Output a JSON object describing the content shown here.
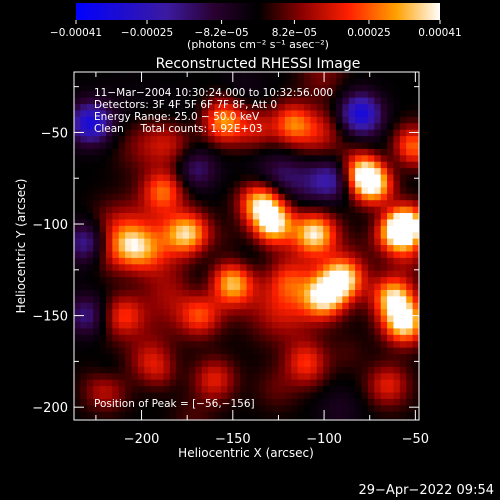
{
  "chart_data": {
    "type": "heatmap",
    "title": "Reconstructed RHESSI Image",
    "xlabel": "Heliocentric X (arcsec)",
    "ylabel": "Heliocentric Y (arcsec)",
    "xlim": [
      -237,
      -48
    ],
    "ylim": [
      -207,
      -17
    ],
    "xticks": [
      -200,
      -150,
      -100,
      -50
    ],
    "yticks": [
      -50,
      -100,
      -150,
      -200
    ],
    "xtick_labels": [
      "−200",
      "−150",
      "−100",
      "−50"
    ],
    "ytick_labels": [
      "−50",
      "−100",
      "−150",
      "−200"
    ],
    "colorbar": {
      "min": -0.00041,
      "max": 0.00041,
      "ticks": [
        -0.00041,
        -0.00025,
        -8.2e-05,
        8.2e-05,
        0.00025,
        0.00041
      ],
      "tick_labels": [
        "−0.00041",
        "−0.00025",
        "−8.2e−05",
        "8.2e−05",
        "0.00025",
        "0.00041"
      ],
      "unit_label": "(photons cm⁻² s⁻¹ asec⁻²)"
    },
    "annotations": [
      "11−Mar−2004 10:30:24.000 to 10:32:56.000",
      "Detectors: 3F 4F 5F 6F 7F 8F, Att 0",
      "Energy Range: 25.0 − 50.0 keV",
      "Clean     Total counts: 1.92E+03"
    ],
    "peak_label": "Position of Peak = [−56,−156]",
    "peak": [
      -56,
      -156
    ],
    "bright_sources": [
      {
        "x": -100,
        "y": -140,
        "v": 0.00036
      },
      {
        "x": -90,
        "y": -130,
        "v": 0.0004
      },
      {
        "x": -62,
        "y": -140,
        "v": 0.00036
      },
      {
        "x": -56,
        "y": -154,
        "v": 0.00041
      },
      {
        "x": -78,
        "y": -72,
        "v": 0.00038
      },
      {
        "x": -72,
        "y": -80,
        "v": 0.00034
      },
      {
        "x": -135,
        "y": -88,
        "v": 0.00036
      },
      {
        "x": -128,
        "y": -100,
        "v": 0.00039
      },
      {
        "x": -105,
        "y": -105,
        "v": 0.00036
      },
      {
        "x": -55,
        "y": -100,
        "v": 0.00038
      },
      {
        "x": -60,
        "y": -105,
        "v": 0.00034
      },
      {
        "x": -188,
        "y": -82,
        "v": 0.00026
      },
      {
        "x": -174,
        "y": -105,
        "v": 0.00031
      },
      {
        "x": -205,
        "y": -112,
        "v": 0.00024
      },
      {
        "x": -150,
        "y": -132,
        "v": 0.0003
      },
      {
        "x": -168,
        "y": -150,
        "v": 0.00022
      },
      {
        "x": -118,
        "y": -45,
        "v": 0.00026
      },
      {
        "x": -155,
        "y": -45,
        "v": 0.00022
      },
      {
        "x": -52,
        "y": -58,
        "v": 0.00028
      },
      {
        "x": -210,
        "y": -150,
        "v": 0.0002
      },
      {
        "x": -110,
        "y": -175,
        "v": 0.00018
      },
      {
        "x": -160,
        "y": -185,
        "v": 0.00018
      },
      {
        "x": -220,
        "y": -190,
        "v": 0.00016
      },
      {
        "x": -65,
        "y": -188,
        "v": 0.00018
      },
      {
        "x": -195,
        "y": -175,
        "v": 0.00014
      }
    ],
    "negative_sources": [
      {
        "x": -228,
        "y": -45,
        "v": -0.00032
      },
      {
        "x": -80,
        "y": -40,
        "v": -0.00034
      },
      {
        "x": -95,
        "y": -75,
        "v": -0.00026
      },
      {
        "x": -230,
        "y": -110,
        "v": -0.00022
      },
      {
        "x": -230,
        "y": -150,
        "v": -0.00018
      },
      {
        "x": -170,
        "y": -70,
        "v": -0.00016
      }
    ]
  },
  "footer": {
    "timestamp": "29−Apr−2022 09:54"
  }
}
